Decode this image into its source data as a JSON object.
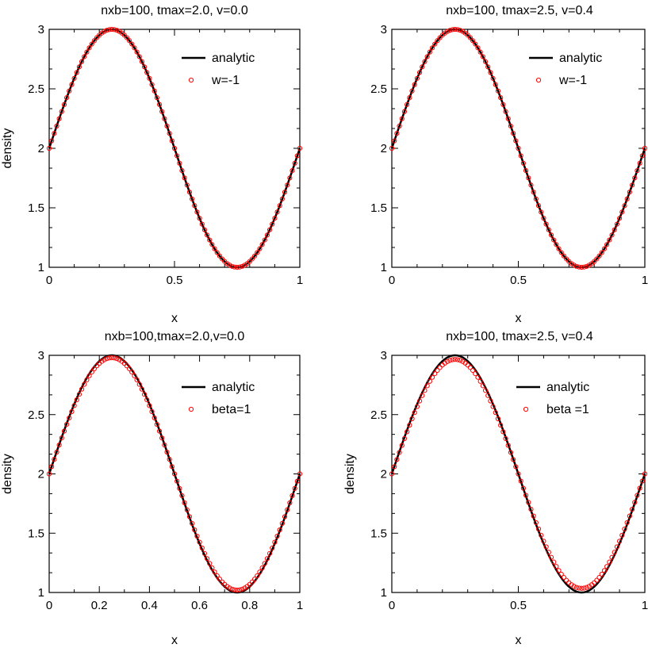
{
  "chart_data": [
    {
      "type": "line",
      "title": "nxb=100, tmax=2.0, v=0.0",
      "xlabel": "x",
      "ylabel": "density",
      "xlim": [
        0,
        1
      ],
      "ylim": [
        1,
        3
      ],
      "xticks": [
        "0",
        "0.5",
        "1"
      ],
      "yticks": [
        "1",
        "1.5",
        "2",
        "2.5",
        "3"
      ],
      "legend_position": "top-right",
      "series": [
        {
          "name": "analytic",
          "style": "line",
          "color": "#000000",
          "formula": "2 + sin(2*pi*x)",
          "x": [
            0,
            0.125,
            0.25,
            0.375,
            0.5,
            0.625,
            0.75,
            0.875,
            1
          ],
          "y": [
            2.0,
            2.71,
            3.0,
            2.71,
            2.0,
            1.29,
            1.0,
            1.29,
            2.0
          ]
        },
        {
          "name": "w=-1",
          "style": "markers",
          "color": "#ff0000",
          "formula": "2 + sin(2*pi*x)",
          "amplitude": 1.0,
          "points": 100,
          "x": [
            0,
            0.25,
            0.5,
            0.75,
            1
          ],
          "y": [
            2.0,
            3.0,
            2.0,
            1.0,
            2.0
          ]
        }
      ]
    },
    {
      "type": "line",
      "title": "nxb=100, tmax=2.5, v=0.4",
      "xlabel": "x",
      "ylabel": "",
      "xlim": [
        0,
        1
      ],
      "ylim": [
        1,
        3
      ],
      "xticks": [
        "0",
        "0.5",
        "1"
      ],
      "yticks": [
        "1",
        "1.5",
        "2",
        "2.5",
        "3"
      ],
      "legend_position": "top-right",
      "series": [
        {
          "name": "analytic",
          "style": "line",
          "color": "#000000",
          "formula": "2 + sin(2*pi*x)",
          "x": [
            0,
            0.125,
            0.25,
            0.375,
            0.5,
            0.625,
            0.75,
            0.875,
            1
          ],
          "y": [
            2.0,
            2.71,
            3.0,
            2.71,
            2.0,
            1.29,
            1.0,
            1.29,
            2.0
          ]
        },
        {
          "name": "w=-1",
          "style": "markers",
          "color": "#ff0000",
          "formula": "2 + sin(2*pi*x)",
          "amplitude": 1.0,
          "points": 100,
          "x": [
            0,
            0.25,
            0.5,
            0.75,
            1
          ],
          "y": [
            2.0,
            3.0,
            2.0,
            1.0,
            2.0
          ]
        }
      ]
    },
    {
      "type": "line",
      "title": "nxb=100,tmax=2.0,v=0.0",
      "xlabel": "x",
      "ylabel": "density",
      "xlim": [
        0,
        1
      ],
      "ylim": [
        1,
        3
      ],
      "xticks": [
        "0",
        "0.2",
        "0.4",
        "0.6",
        "0.8",
        "1"
      ],
      "yticks": [
        "1",
        "1.5",
        "2",
        "2.5",
        "3"
      ],
      "legend_position": "top-right",
      "series": [
        {
          "name": "analytic",
          "style": "line",
          "color": "#000000",
          "formula": "2 + sin(2*pi*x)",
          "x": [
            0,
            0.125,
            0.25,
            0.375,
            0.5,
            0.625,
            0.75,
            0.875,
            1
          ],
          "y": [
            2.0,
            2.71,
            3.0,
            2.71,
            2.0,
            1.29,
            1.0,
            1.29,
            2.0
          ]
        },
        {
          "name": "beta=1",
          "style": "markers",
          "color": "#ff0000",
          "formula": "2 + 0.98*sin(2*pi*x)",
          "amplitude": 0.98,
          "points": 100,
          "x": [
            0,
            0.25,
            0.5,
            0.75,
            1
          ],
          "y": [
            2.0,
            2.98,
            2.0,
            1.02,
            2.0
          ]
        }
      ]
    },
    {
      "type": "line",
      "title": "nxb=100, tmax=2.5, v=0.4",
      "xlabel": "x",
      "ylabel": "density",
      "xlim": [
        0,
        1
      ],
      "ylim": [
        1,
        3
      ],
      "xticks": [
        "0",
        "0.5",
        "1"
      ],
      "yticks": [
        "1",
        "1.5",
        "2",
        "2.5",
        "3"
      ],
      "legend_position": "top-right",
      "series": [
        {
          "name": "analytic",
          "style": "line",
          "color": "#000000",
          "formula": "2 + sin(2*pi*x)",
          "x": [
            0,
            0.125,
            0.25,
            0.375,
            0.5,
            0.625,
            0.75,
            0.875,
            1
          ],
          "y": [
            2.0,
            2.71,
            3.0,
            2.71,
            2.0,
            1.29,
            1.0,
            1.29,
            2.0
          ]
        },
        {
          "name": "beta =1",
          "style": "markers",
          "color": "#ff0000",
          "formula": "2 + 0.965*sin(2*pi*x)",
          "amplitude": 0.965,
          "points": 100,
          "x": [
            0,
            0.25,
            0.5,
            0.75,
            1
          ],
          "y": [
            2.0,
            2.965,
            2.0,
            1.035,
            2.0
          ]
        }
      ]
    }
  ]
}
